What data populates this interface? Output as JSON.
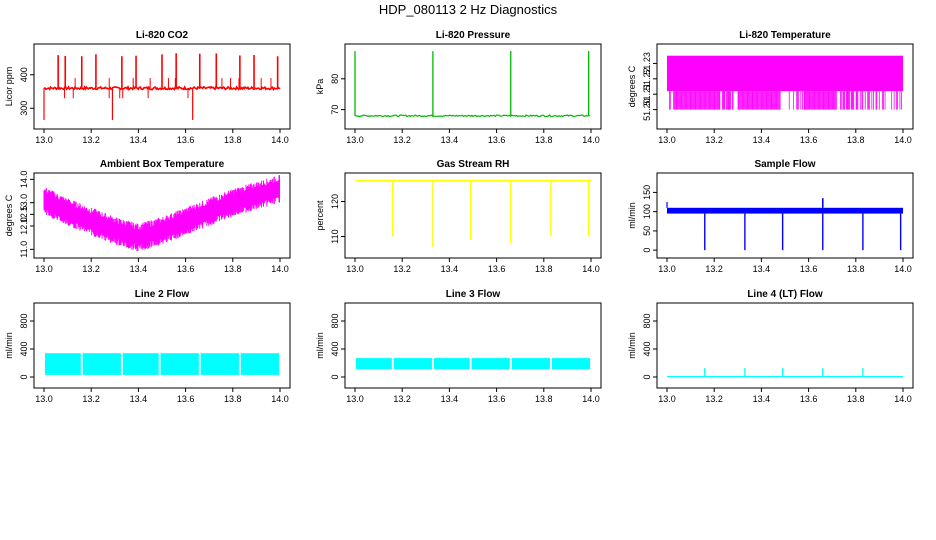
{
  "title": "HDP_080113  2 Hz Diagnostics",
  "chart_data": [
    {
      "type": "line",
      "title": "Li-820 CO2",
      "xlabel": "",
      "ylabel": "Licor ppm",
      "color": "#ff0000",
      "xlim": [
        13.0,
        14.0
      ],
      "ylim": [
        250,
        480
      ],
      "xticks": [
        "13.0",
        "13.2",
        "13.4",
        "13.6",
        "13.8",
        "14.0"
      ],
      "yticks": [
        "300",
        "400"
      ],
      "baseline": 360,
      "spikes_up": [
        13.06,
        13.09,
        13.16,
        13.22,
        13.33,
        13.39,
        13.5,
        13.56,
        13.66,
        13.73,
        13.83,
        13.89,
        13.99
      ],
      "spikes_down": [
        13.0,
        13.29,
        13.63
      ],
      "peak": 465,
      "trough": 265
    },
    {
      "type": "line",
      "title": "Li-820 Pressure",
      "xlabel": "",
      "ylabel": "kPa",
      "color": "#00bb00",
      "xlim": [
        13.0,
        14.0
      ],
      "ylim": [
        65,
        90
      ],
      "xticks": [
        "13.0",
        "13.2",
        "13.4",
        "13.6",
        "13.8",
        "14.0"
      ],
      "yticks": [
        "70",
        "80"
      ],
      "baseline": 68,
      "spikes_up": [
        13.0,
        13.33,
        13.66,
        13.99
      ],
      "peak": 89
    },
    {
      "type": "line",
      "title": "Li-820 Temperature",
      "xlabel": "",
      "ylabel": "degrees C",
      "color": "#ff00ff",
      "xlim": [
        13.0,
        14.0
      ],
      "ylim": [
        51.19,
        51.24
      ],
      "xticks": [
        "13.0",
        "13.2",
        "13.4",
        "13.6",
        "13.8",
        "14.0"
      ],
      "yticks": [
        "51.20",
        "51.21",
        "51.22",
        "51.23"
      ],
      "upper": 51.235,
      "lower": 51.2
    },
    {
      "type": "line",
      "title": "Ambient Box Temperature",
      "xlabel": "",
      "ylabel": "degrees C",
      "color": "#ff00ff",
      "xlim": [
        13.0,
        14.0
      ],
      "ylim": [
        10.8,
        14.1
      ],
      "xticks": [
        "13.0",
        "13.2",
        "13.4",
        "13.6",
        "13.8",
        "14.0"
      ],
      "yticks": [
        "11.0",
        "12.0",
        "12.5",
        "13.0",
        "14.0"
      ],
      "trend_x": [
        13.0,
        13.1,
        13.2,
        13.3,
        13.4,
        13.5,
        13.6,
        13.7,
        13.8,
        13.9,
        14.0
      ],
      "trend_y": [
        13.1,
        12.6,
        12.2,
        11.8,
        11.5,
        11.8,
        12.2,
        12.6,
        13.0,
        13.3,
        13.6
      ],
      "noise_amp": 0.5
    },
    {
      "type": "line",
      "title": "Gas Stream RH",
      "xlabel": "",
      "ylabel": "percent",
      "color": "#ffff00",
      "xlim": [
        13.0,
        14.0
      ],
      "ylim": [
        105,
        127
      ],
      "xticks": [
        "13.0",
        "13.2",
        "13.4",
        "13.6",
        "13.8",
        "14.0"
      ],
      "yticks": [
        "110",
        "120"
      ],
      "baseline": 126,
      "dips_x": [
        13.16,
        13.33,
        13.49,
        13.66,
        13.83,
        13.99
      ],
      "dips_y": [
        110,
        107,
        109,
        108,
        110,
        110
      ]
    },
    {
      "type": "line",
      "title": "Sample Flow",
      "xlabel": "",
      "ylabel": "ml/min",
      "color": "#0000ff",
      "xlim": [
        13.0,
        14.0
      ],
      "ylim": [
        -10,
        190
      ],
      "xticks": [
        "13.0",
        "13.2",
        "13.4",
        "13.6",
        "13.8",
        "14.0"
      ],
      "yticks": [
        "0",
        "50",
        "100",
        "150"
      ],
      "band": [
        95,
        110
      ],
      "start_peak": 125,
      "dips": [
        13.16,
        13.33,
        13.49,
        13.66,
        13.83,
        13.99
      ],
      "peaks": [
        13.66
      ]
    },
    {
      "type": "line",
      "title": "Line 2 Flow",
      "xlabel": "",
      "ylabel": "ml/min",
      "color": "#00ffff",
      "xlim": [
        13.0,
        14.0
      ],
      "ylim": [
        -100,
        1000
      ],
      "xticks": [
        "13.0",
        "13.2",
        "13.4",
        "13.6",
        "13.8",
        "14.0"
      ],
      "yticks": [
        "0",
        "400",
        "800"
      ],
      "band": [
        30,
        340
      ],
      "gaps": [
        13.16,
        13.33,
        13.49,
        13.66,
        13.83
      ]
    },
    {
      "type": "line",
      "title": "Line 3 Flow",
      "xlabel": "",
      "ylabel": "ml/min",
      "color": "#00ffff",
      "xlim": [
        13.0,
        14.0
      ],
      "ylim": [
        -100,
        1000
      ],
      "xticks": [
        "13.0",
        "13.2",
        "13.4",
        "13.6",
        "13.8",
        "14.0"
      ],
      "yticks": [
        "0",
        "400",
        "800"
      ],
      "band": [
        110,
        270
      ],
      "gaps": [
        13.16,
        13.33,
        13.49,
        13.66,
        13.83
      ]
    },
    {
      "type": "line",
      "title": "Line 4 (LT) Flow",
      "xlabel": "",
      "ylabel": "ml/min",
      "color": "#00ffff",
      "xlim": [
        13.0,
        14.0
      ],
      "ylim": [
        -100,
        1000
      ],
      "xticks": [
        "13.0",
        "13.2",
        "13.4",
        "13.6",
        "13.8",
        "14.0"
      ],
      "yticks": [
        "0",
        "400",
        "800"
      ],
      "baseline": 5,
      "spikes_up": [
        13.16,
        13.33,
        13.49,
        13.66,
        13.83
      ],
      "peak": 130
    }
  ]
}
